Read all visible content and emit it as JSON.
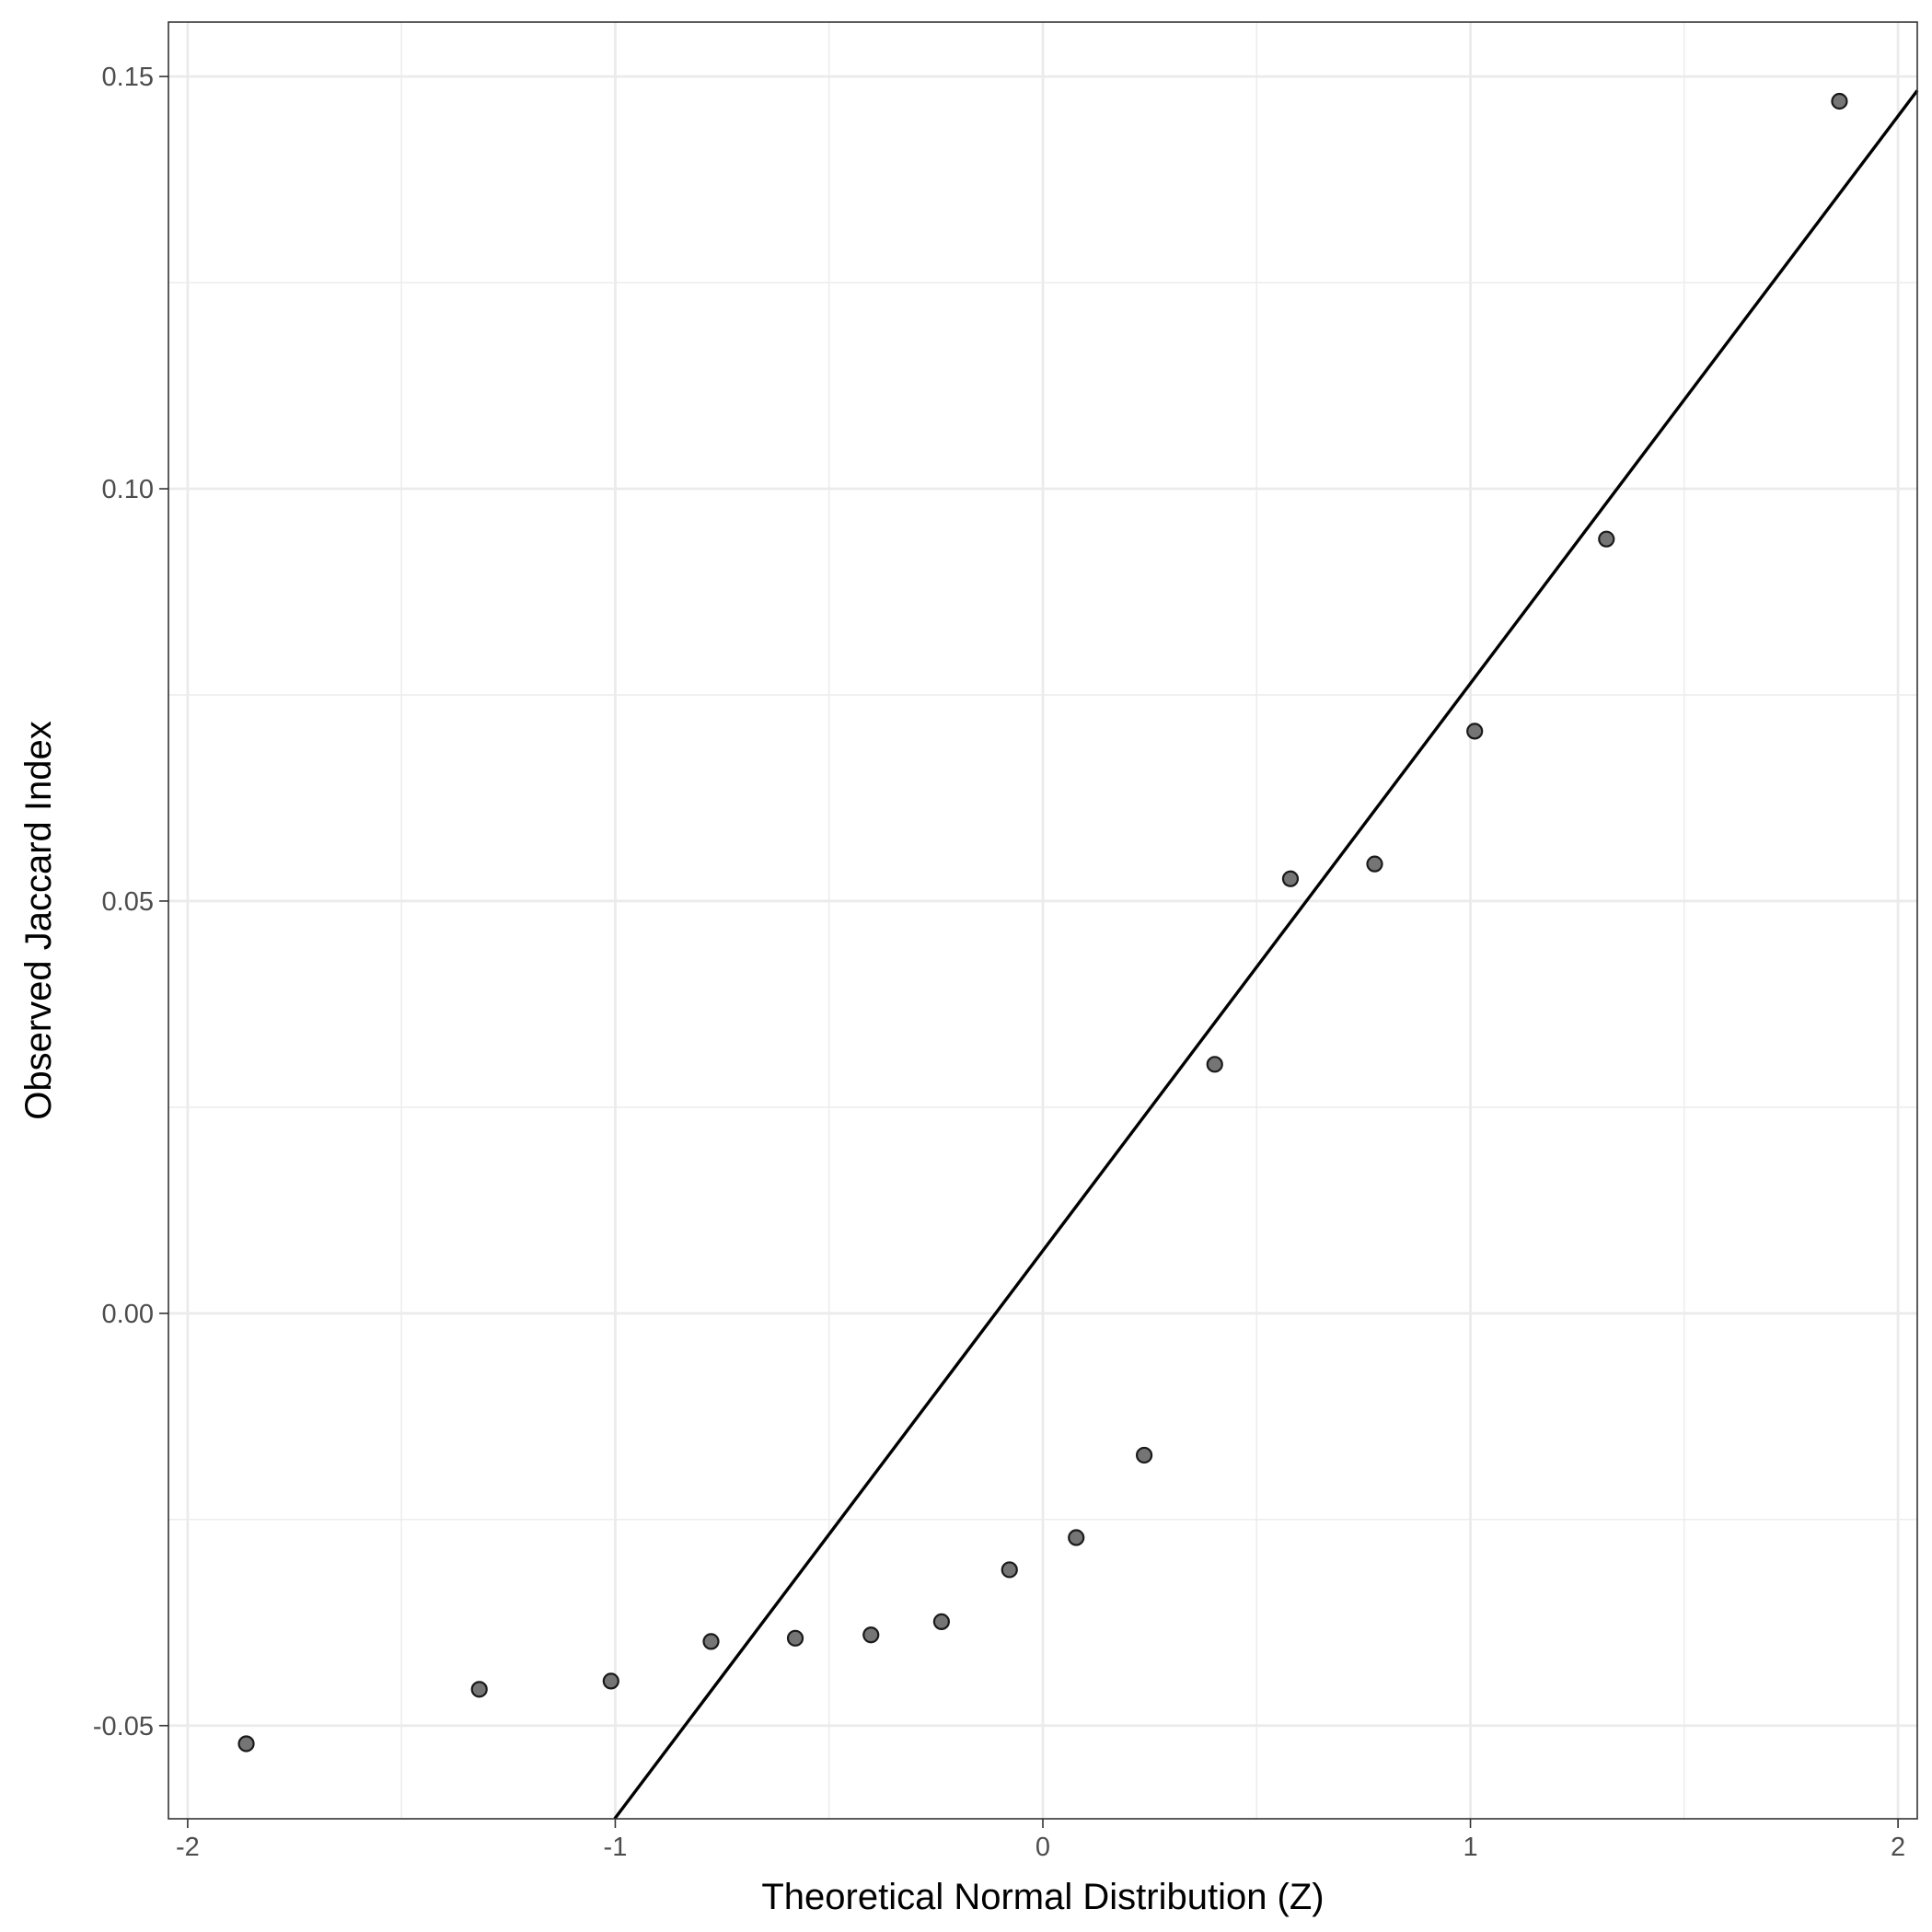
{
  "chart_data": {
    "type": "scatter",
    "title": "",
    "xlabel": "Theoretical Normal Distribution (Z)",
    "ylabel": "Observed Jaccard Index",
    "xlim": [
      -2.045,
      2.045
    ],
    "ylim": [
      -0.0613,
      0.1566
    ],
    "x_ticks": [
      -2,
      -1,
      0,
      1,
      2
    ],
    "x_tick_labels": [
      "-2",
      "-1",
      "0",
      "1",
      "2"
    ],
    "y_ticks": [
      -0.05,
      0.0,
      0.05,
      0.1,
      0.15
    ],
    "y_tick_labels": [
      "-0.05",
      "0.00",
      "0.05",
      "0.10",
      "0.15"
    ],
    "grid": true,
    "series": [
      {
        "points": [
          {
            "x": -1.863,
            "y": -0.0522
          },
          {
            "x": -1.318,
            "y": -0.0456
          },
          {
            "x": -1.01,
            "y": -0.0446
          },
          {
            "x": -0.776,
            "y": -0.0398
          },
          {
            "x": -0.579,
            "y": -0.0394
          },
          {
            "x": -0.402,
            "y": -0.039
          },
          {
            "x": -0.237,
            "y": -0.0374
          },
          {
            "x": -0.078,
            "y": -0.0311
          },
          {
            "x": 0.078,
            "y": -0.0272
          },
          {
            "x": 0.237,
            "y": -0.0172
          },
          {
            "x": 0.402,
            "y": 0.0302
          },
          {
            "x": 0.579,
            "y": 0.0527
          },
          {
            "x": 0.776,
            "y": 0.0545
          },
          {
            "x": 1.01,
            "y": 0.0706
          },
          {
            "x": 1.318,
            "y": 0.0939
          },
          {
            "x": 1.863,
            "y": 0.147
          }
        ],
        "color": "#666666"
      }
    ],
    "reference_line": {
      "intercept": 0.0076,
      "slope": 0.0688,
      "color": "#000000"
    }
  }
}
